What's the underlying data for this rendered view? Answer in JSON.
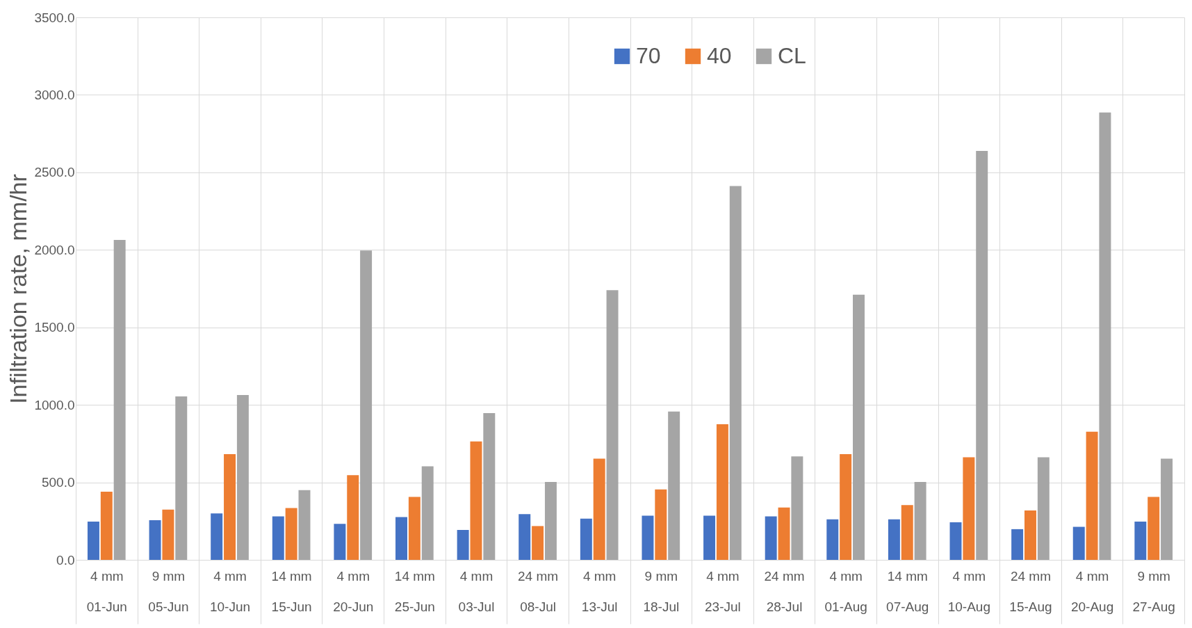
{
  "chart_data": {
    "type": "bar",
    "ylabel": "Infiltration rate, mm/hr",
    "categories": [
      "4 mm\n01-Jun",
      "9 mm\n05-Jun",
      "4 mm\n10-Jun",
      "14 mm\n15-Jun",
      "4 mm\n20-Jun",
      "14 mm\n25-Jun",
      "4 mm\n03-Jul",
      "24 mm\n08-Jul",
      "4 mm\n13-Jul",
      "9 mm\n18-Jul",
      "4 mm\n23-Jul",
      "24 mm\n28-Jul",
      "4 mm\n01-Aug",
      "14 mm\n07-Aug",
      "4 mm\n10-Aug",
      "24 mm\n15-Aug",
      "4 mm\n20-Aug",
      "9 mm\n27-Aug"
    ],
    "series": [
      {
        "name": "70",
        "color": "#4472c4",
        "values": [
          247,
          256,
          300,
          280,
          232,
          276,
          193,
          295,
          266,
          285,
          285,
          280,
          261,
          261,
          242,
          198,
          213,
          247
        ]
      },
      {
        "name": "40",
        "color": "#ed7d31",
        "values": [
          440,
          324,
          682,
          334,
          546,
          406,
          764,
          218,
          653,
          454,
          875,
          338,
          682,
          353,
          662,
          319,
          827,
          406
        ]
      },
      {
        "name": "CL",
        "color": "#a5a5a5",
        "values": [
          2064,
          1054,
          1063,
          450,
          1996,
          604,
          947,
          503,
          1740,
          957,
          2412,
          667,
          1711,
          503,
          2639,
          662,
          2886,
          653
        ]
      }
    ],
    "ylim": [
      0,
      3500
    ],
    "yticks": [
      {
        "value": 0,
        "label": "0.0"
      },
      {
        "value": 500,
        "label": "500.0"
      },
      {
        "value": 1000,
        "label": "1000.0"
      },
      {
        "value": 1500,
        "label": "1500.0"
      },
      {
        "value": 2000,
        "label": "2000.0"
      },
      {
        "value": 2500,
        "label": "2500.0"
      },
      {
        "value": 3000,
        "label": "3000.0"
      },
      {
        "value": 3500,
        "label": "3500.0"
      }
    ],
    "grid": true,
    "legend": "top"
  }
}
